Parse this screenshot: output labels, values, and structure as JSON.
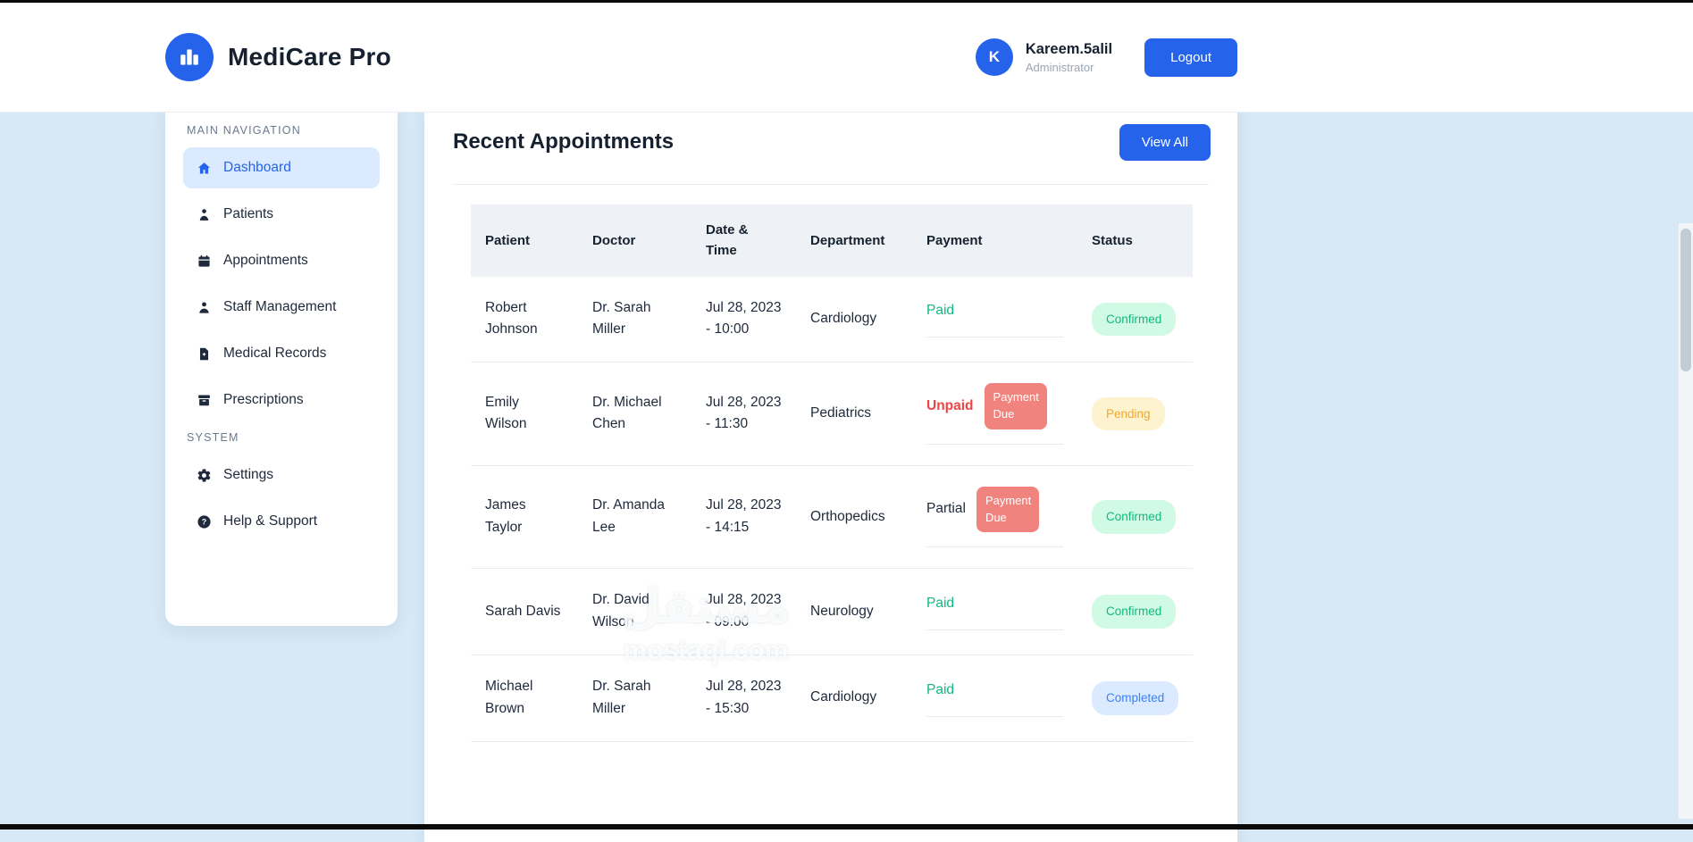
{
  "header": {
    "brand": "MediCare Pro",
    "user": {
      "avatar_initial": "K",
      "name": "Kareem.5alil",
      "role": "Administrator"
    },
    "logout_label": "Logout"
  },
  "sidebar": {
    "sections": [
      {
        "label": "MAIN NAVIGATION",
        "items": [
          {
            "label": "Dashboard",
            "icon": "home-icon",
            "active": true
          },
          {
            "label": "Patients",
            "icon": "patients-icon",
            "active": false
          },
          {
            "label": "Appointments",
            "icon": "calendar-icon",
            "active": false
          },
          {
            "label": "Staff Management",
            "icon": "staff-icon",
            "active": false
          },
          {
            "label": "Medical Records",
            "icon": "records-icon",
            "active": false
          },
          {
            "label": "Prescriptions",
            "icon": "prescriptions-icon",
            "active": false
          }
        ]
      },
      {
        "label": "SYSTEM",
        "items": [
          {
            "label": "Settings",
            "icon": "gear-icon",
            "active": false
          },
          {
            "label": "Help & Support",
            "icon": "help-icon",
            "active": false
          }
        ]
      }
    ]
  },
  "main": {
    "title": "Recent Appointments",
    "view_all_label": "View All",
    "table": {
      "columns": [
        "Patient",
        "Doctor",
        "Date & Time",
        "Department",
        "Payment",
        "Status"
      ],
      "rows": [
        {
          "patient": "Robert Johnson",
          "doctor": "Dr. Sarah Miller",
          "datetime": "Jul 28, 2023 - 10:00",
          "department": "Cardiology",
          "payment": {
            "label": "Paid",
            "state": "paid",
            "badge": null
          },
          "status": {
            "label": "Confirmed",
            "state": "confirmed"
          }
        },
        {
          "patient": "Emily Wilson",
          "doctor": "Dr. Michael Chen",
          "datetime": "Jul 28, 2023 - 11:30",
          "department": "Pediatrics",
          "payment": {
            "label": "Unpaid",
            "state": "unpaid",
            "badge": "Payment Due"
          },
          "status": {
            "label": "Pending",
            "state": "pending"
          }
        },
        {
          "patient": "James Taylor",
          "doctor": "Dr. Amanda Lee",
          "datetime": "Jul 28, 2023 - 14:15",
          "department": "Orthopedics",
          "payment": {
            "label": "Partial",
            "state": "partial",
            "badge": "Payment Due"
          },
          "status": {
            "label": "Confirmed",
            "state": "confirmed"
          }
        },
        {
          "patient": "Sarah Davis",
          "doctor": "Dr. David Wilson",
          "datetime": "Jul 28, 2023 - 09:00",
          "department": "Neurology",
          "payment": {
            "label": "Paid",
            "state": "paid",
            "badge": null
          },
          "status": {
            "label": "Confirmed",
            "state": "confirmed"
          }
        },
        {
          "patient": "Michael Brown",
          "doctor": "Dr. Sarah Miller",
          "datetime": "Jul 28, 2023 - 15:30",
          "department": "Cardiology",
          "payment": {
            "label": "Paid",
            "state": "paid",
            "badge": null
          },
          "status": {
            "label": "Completed",
            "state": "completed"
          }
        }
      ]
    }
  },
  "watermark": {
    "title": "مستقل",
    "subtitle": "mostaql.com"
  },
  "colors": {
    "accent": "#2563eb",
    "page_background": "#d7e8f6",
    "active_nav_background": "#dbeafe",
    "paid_text": "#10b981",
    "unpaid_text": "#ef4444",
    "payment_due_badge_background": "#f0837d",
    "confirmed_badge_background": "#d1fae5",
    "confirmed_badge_text": "#10b981",
    "pending_badge_background": "#fdf3cf",
    "pending_badge_text": "#f0a92e",
    "completed_badge_background": "#dbeafe",
    "completed_badge_text": "#3b82f6"
  }
}
